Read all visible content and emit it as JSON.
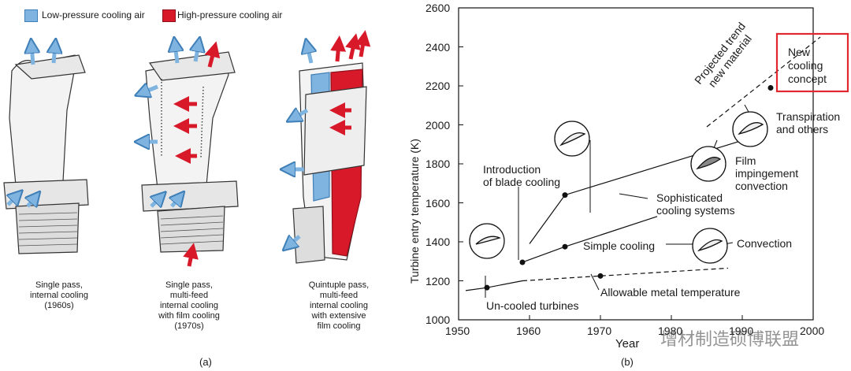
{
  "legend": {
    "low_pressure": {
      "label": "Low-pressure cooling air",
      "color": "#7fb4e0"
    },
    "high_pressure": {
      "label": "High-pressure cooling air",
      "color": "#d7192a"
    }
  },
  "blades": [
    {
      "caption": [
        "Single pass,",
        "internal cooling",
        "(1960s)"
      ]
    },
    {
      "caption": [
        "Single pass,",
        "multi-feed",
        "internal cooling",
        "with film cooling",
        "(1970s)"
      ]
    },
    {
      "caption": [
        "Quintuple pass,",
        "multi-feed",
        "internal cooling",
        "with extensive",
        "film cooling"
      ]
    }
  ],
  "panel_labels": {
    "a": "(a)",
    "b": "(b)"
  },
  "chart_data": {
    "type": "line",
    "xlabel": "Year",
    "ylabel": "Turbine entry temperature (K)",
    "xlim": [
      1950,
      2000
    ],
    "ylim": [
      1000,
      2600
    ],
    "xticks": [
      1950,
      1960,
      1970,
      1980,
      1990,
      2000
    ],
    "yticks": [
      1000,
      1200,
      1400,
      1600,
      1800,
      2000,
      2200,
      2400,
      2600
    ],
    "series": [
      {
        "style": "solid",
        "points": [
          [
            1951,
            1150
          ],
          [
            1954,
            1165
          ],
          [
            1959,
            1200
          ]
        ]
      },
      {
        "style": "dashed",
        "points": [
          [
            1959,
            1200
          ],
          [
            1970,
            1225
          ],
          [
            1988,
            1265
          ]
        ]
      },
      {
        "style": "solid",
        "points": [
          [
            1959,
            1295
          ],
          [
            1965,
            1375
          ],
          [
            1978,
            1530
          ]
        ]
      },
      {
        "style": "solid",
        "points": [
          [
            1960,
            1390
          ],
          [
            1965,
            1640
          ],
          [
            1990,
            1920
          ]
        ]
      },
      {
        "style": "dashed",
        "points": [
          [
            1985,
            1990
          ],
          [
            2001,
            2450
          ]
        ]
      }
    ],
    "markers": [
      [
        1954,
        1165
      ],
      [
        1970,
        1225
      ],
      [
        1959,
        1295
      ],
      [
        1965,
        1375
      ],
      [
        1965,
        1640
      ],
      [
        1994,
        2190
      ]
    ],
    "annotations": {
      "uncooled": "Un-cooled turbines",
      "allowable": "Allowable metal temperature",
      "blade_cooling": [
        "Introduction",
        "of blade cooling"
      ],
      "simple": "Simple cooling",
      "sophisticated": [
        "Sophisticated",
        "cooling systems"
      ],
      "convection": "Convection",
      "film": [
        "Film",
        "impingement",
        "convection"
      ],
      "transpiration": [
        "Transpiration",
        "and others"
      ],
      "projected": [
        "Projected trend",
        "new material"
      ],
      "new_concept": [
        "New",
        "cooling",
        "concept"
      ]
    },
    "highlight_color": "#e0282e"
  },
  "watermark": "增材制造硕博联盟"
}
